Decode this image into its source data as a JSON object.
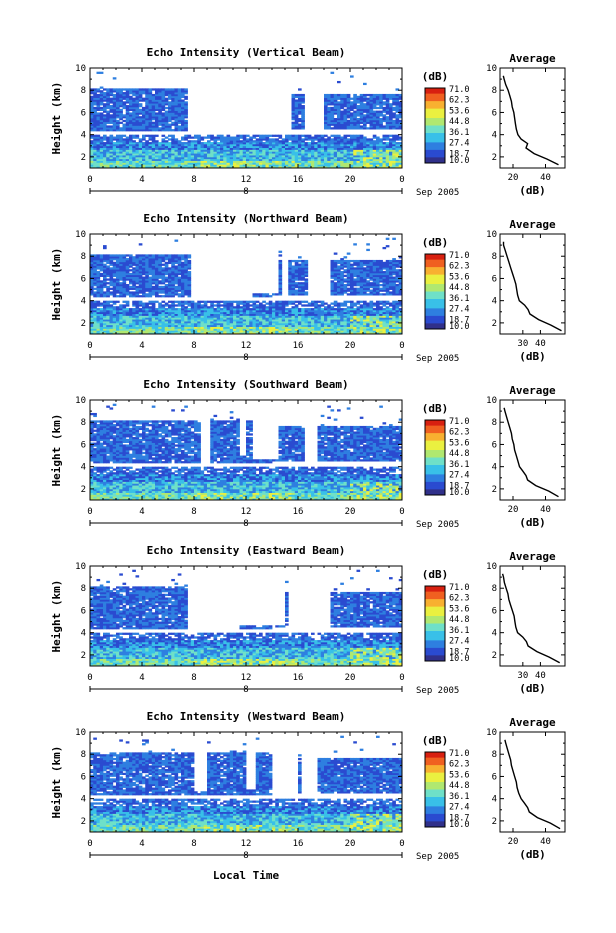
{
  "figure": {
    "x_axis_title": "Local Time",
    "colors": {
      "background": "#ffffff",
      "axis": "#000000",
      "colormap": [
        "#30308a",
        "#2a4bd0",
        "#2e7fe0",
        "#39c0e8",
        "#6fe0c8",
        "#b0e870",
        "#eaf040",
        "#f8b030",
        "#f06020",
        "#d82010"
      ]
    }
  },
  "chart_data": [
    {
      "type": "heatmap",
      "title": "Echo Intensity (Vertical Beam)",
      "ylabel": "Height (km)",
      "x_ticks": [
        "0",
        "4",
        "8",
        "12",
        "16",
        "20",
        "0"
      ],
      "y_ticks": [
        "2",
        "4",
        "6",
        "8",
        "10"
      ],
      "xlim": [
        0,
        24
      ],
      "ylim": [
        1,
        10
      ],
      "date_marker": "8",
      "date_label": "Sep 2005",
      "colorbar": {
        "unit": "(dB)",
        "labels": [
          "71.0",
          "62.3",
          "53.6",
          "44.8",
          "36.1",
          "27.4",
          "18.7",
          "10.0"
        ],
        "range": [
          10.0,
          71.0
        ]
      },
      "profile": {
        "title": "Average",
        "xlabel": "(dB)",
        "x_ticks": [
          "20",
          "40"
        ],
        "xlim": [
          12,
          52
        ],
        "ylim": [
          1,
          10
        ],
        "y_ticks": [
          "2",
          "4",
          "6",
          "8",
          "10"
        ],
        "height_km": [
          1.3,
          1.8,
          2.3,
          2.8,
          3.2,
          3.6,
          4.0,
          4.5,
          5.0,
          5.5,
          6.0,
          6.5,
          7.0,
          7.5,
          8.0,
          8.5,
          9.0,
          9.3
        ],
        "echo_db": [
          48,
          41,
          33,
          28,
          29,
          25,
          23,
          22,
          21.5,
          21,
          20.5,
          19.5,
          19,
          18,
          17,
          15.5,
          14.5,
          14
        ]
      }
    },
    {
      "type": "heatmap",
      "title": "Echo Intensity (Northward Beam)",
      "ylabel": "Height (km)",
      "x_ticks": [
        "0",
        "4",
        "8",
        "12",
        "16",
        "20",
        "0"
      ],
      "y_ticks": [
        "2",
        "4",
        "6",
        "8",
        "10"
      ],
      "xlim": [
        0,
        24
      ],
      "ylim": [
        1,
        10
      ],
      "date_marker": "8",
      "date_label": "Sep 2005",
      "colorbar": {
        "unit": "(dB)",
        "labels": [
          "71.0",
          "62.3",
          "53.6",
          "44.8",
          "36.1",
          "27.4",
          "18.7",
          "10.0"
        ],
        "range": [
          10.0,
          71.0
        ]
      },
      "profile": {
        "title": "Average",
        "xlabel": "(dB)",
        "x_ticks": [
          "30",
          "40"
        ],
        "xlim": [
          17,
          54
        ],
        "ylim": [
          1,
          10
        ],
        "y_ticks": [
          "2",
          "4",
          "6",
          "8",
          "10"
        ],
        "height_km": [
          1.3,
          1.8,
          2.3,
          2.8,
          3.2,
          3.6,
          4.0,
          4.5,
          5.0,
          5.5,
          6.0,
          6.5,
          7.0,
          7.5,
          8.0,
          8.5,
          9.0,
          9.3
        ],
        "echo_db": [
          52,
          46,
          39,
          34,
          33,
          31,
          28,
          27,
          26.5,
          26,
          25,
          24,
          23,
          22,
          21,
          20,
          19,
          19
        ]
      }
    },
    {
      "type": "heatmap",
      "title": "Echo Intensity (Southward Beam)",
      "ylabel": "Height (km)",
      "x_ticks": [
        "0",
        "4",
        "8",
        "12",
        "16",
        "20",
        "0"
      ],
      "y_ticks": [
        "2",
        "4",
        "6",
        "8",
        "10"
      ],
      "xlim": [
        0,
        24
      ],
      "ylim": [
        1,
        10
      ],
      "date_marker": "8",
      "date_label": "Sep 2005",
      "colorbar": {
        "unit": "(dB)",
        "labels": [
          "71.0",
          "62.3",
          "53.6",
          "44.8",
          "36.1",
          "27.4",
          "18.7",
          "10.0"
        ],
        "range": [
          10.0,
          71.0
        ]
      },
      "profile": {
        "title": "Average",
        "xlabel": "(dB)",
        "x_ticks": [
          "20",
          "40"
        ],
        "xlim": [
          12,
          52
        ],
        "ylim": [
          1,
          10
        ],
        "y_ticks": [
          "2",
          "4",
          "6",
          "8",
          "10"
        ],
        "height_km": [
          1.3,
          1.8,
          2.3,
          2.8,
          3.2,
          3.6,
          4.0,
          4.5,
          5.0,
          5.5,
          6.0,
          6.5,
          7.0,
          7.5,
          8.0,
          8.5,
          9.0,
          9.3
        ],
        "echo_db": [
          48,
          42,
          34,
          29,
          28,
          26,
          24,
          23,
          22,
          21,
          20.5,
          19.5,
          19,
          18,
          17,
          16,
          15,
          14.5
        ]
      }
    },
    {
      "type": "heatmap",
      "title": "Echo Intensity (Eastward Beam)",
      "ylabel": "Height (km)",
      "x_ticks": [
        "0",
        "4",
        "8",
        "12",
        "16",
        "20",
        "0"
      ],
      "y_ticks": [
        "2",
        "4",
        "6",
        "8",
        "10"
      ],
      "xlim": [
        0,
        24
      ],
      "ylim": [
        1,
        10
      ],
      "date_marker": "8",
      "date_label": "Sep 2005",
      "colorbar": {
        "unit": "(dB)",
        "labels": [
          "71.0",
          "62.3",
          "53.6",
          "44.8",
          "36.1",
          "27.4",
          "18.7",
          "10.0"
        ],
        "range": [
          10.0,
          71.0
        ]
      },
      "profile": {
        "title": "Average",
        "xlabel": "(dB)",
        "x_ticks": [
          "30",
          "40"
        ],
        "xlim": [
          17,
          54
        ],
        "ylim": [
          1,
          10
        ],
        "y_ticks": [
          "2",
          "4",
          "6",
          "8",
          "10"
        ],
        "height_km": [
          1.3,
          1.8,
          2.3,
          2.8,
          3.2,
          3.6,
          4.0,
          4.5,
          5.0,
          5.5,
          6.0,
          6.5,
          7.0,
          7.5,
          8.0,
          8.5,
          9.0,
          9.3
        ],
        "echo_db": [
          51,
          45,
          38,
          33,
          32,
          30,
          27,
          26,
          25.5,
          25,
          24,
          23,
          22,
          21.5,
          20.5,
          19.5,
          19,
          18.5
        ]
      }
    },
    {
      "type": "heatmap",
      "title": "Echo Intensity (Westward Beam)",
      "ylabel": "Height (km)",
      "x_ticks": [
        "0",
        "4",
        "8",
        "12",
        "16",
        "20",
        "0"
      ],
      "y_ticks": [
        "2",
        "4",
        "6",
        "8",
        "10"
      ],
      "xlim": [
        0,
        24
      ],
      "ylim": [
        1,
        10
      ],
      "date_marker": "8",
      "date_label": "Sep 2005",
      "colorbar": {
        "unit": "(dB)",
        "labels": [
          "71.0",
          "62.3",
          "53.6",
          "44.8",
          "36.1",
          "27.4",
          "18.7",
          "10.0"
        ],
        "range": [
          10.0,
          71.0
        ]
      },
      "profile": {
        "title": "Average",
        "xlabel": "(dB)",
        "x_ticks": [
          "20",
          "40"
        ],
        "xlim": [
          12,
          52
        ],
        "ylim": [
          1,
          10
        ],
        "y_ticks": [
          "2",
          "4",
          "6",
          "8",
          "10"
        ],
        "height_km": [
          1.3,
          1.8,
          2.3,
          2.8,
          3.2,
          3.6,
          4.0,
          4.5,
          5.0,
          5.5,
          6.0,
          6.5,
          7.0,
          7.5,
          8.0,
          8.5,
          9.0,
          9.3
        ],
        "echo_db": [
          49,
          43,
          35,
          30,
          29,
          27,
          25,
          23.5,
          22.5,
          22,
          21,
          20,
          19,
          18.5,
          17.5,
          16.5,
          15.5,
          15
        ]
      }
    }
  ]
}
